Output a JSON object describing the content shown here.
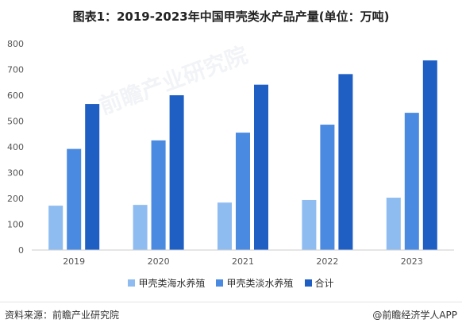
{
  "title": "图表1：2019-2023年中国甲壳类水产品产量(单位：万吨)",
  "footer": {
    "source": "资料来源：前瞻产业研究院",
    "brand": "@前瞻经济学人APP"
  },
  "watermark": "前瞻产业研究院",
  "colors": {
    "series1": "#8fbcf0",
    "series2": "#4a8ae0",
    "series3": "#1f5fc4",
    "axis": "#cccccc",
    "tick_text": "#555555"
  },
  "chart_data": {
    "type": "bar",
    "title": "图表1：2019-2023年中国甲壳类水产品产量(单位：万吨)",
    "xlabel": "",
    "ylabel": "",
    "categories": [
      "2019",
      "2020",
      "2021",
      "2022",
      "2023"
    ],
    "ylim": [
      0,
      800
    ],
    "yticks": [
      0,
      100,
      200,
      300,
      400,
      500,
      600,
      700,
      800
    ],
    "grid": false,
    "legend_position": "bottom",
    "series": [
      {
        "name": "甲壳类海水养殖",
        "values": [
          172,
          175,
          184,
          194,
          203
        ]
      },
      {
        "name": "甲壳类淡水养殖",
        "values": [
          392,
          425,
          455,
          486,
          532
        ]
      },
      {
        "name": "合计",
        "values": [
          566,
          600,
          641,
          682,
          735
        ]
      }
    ]
  }
}
